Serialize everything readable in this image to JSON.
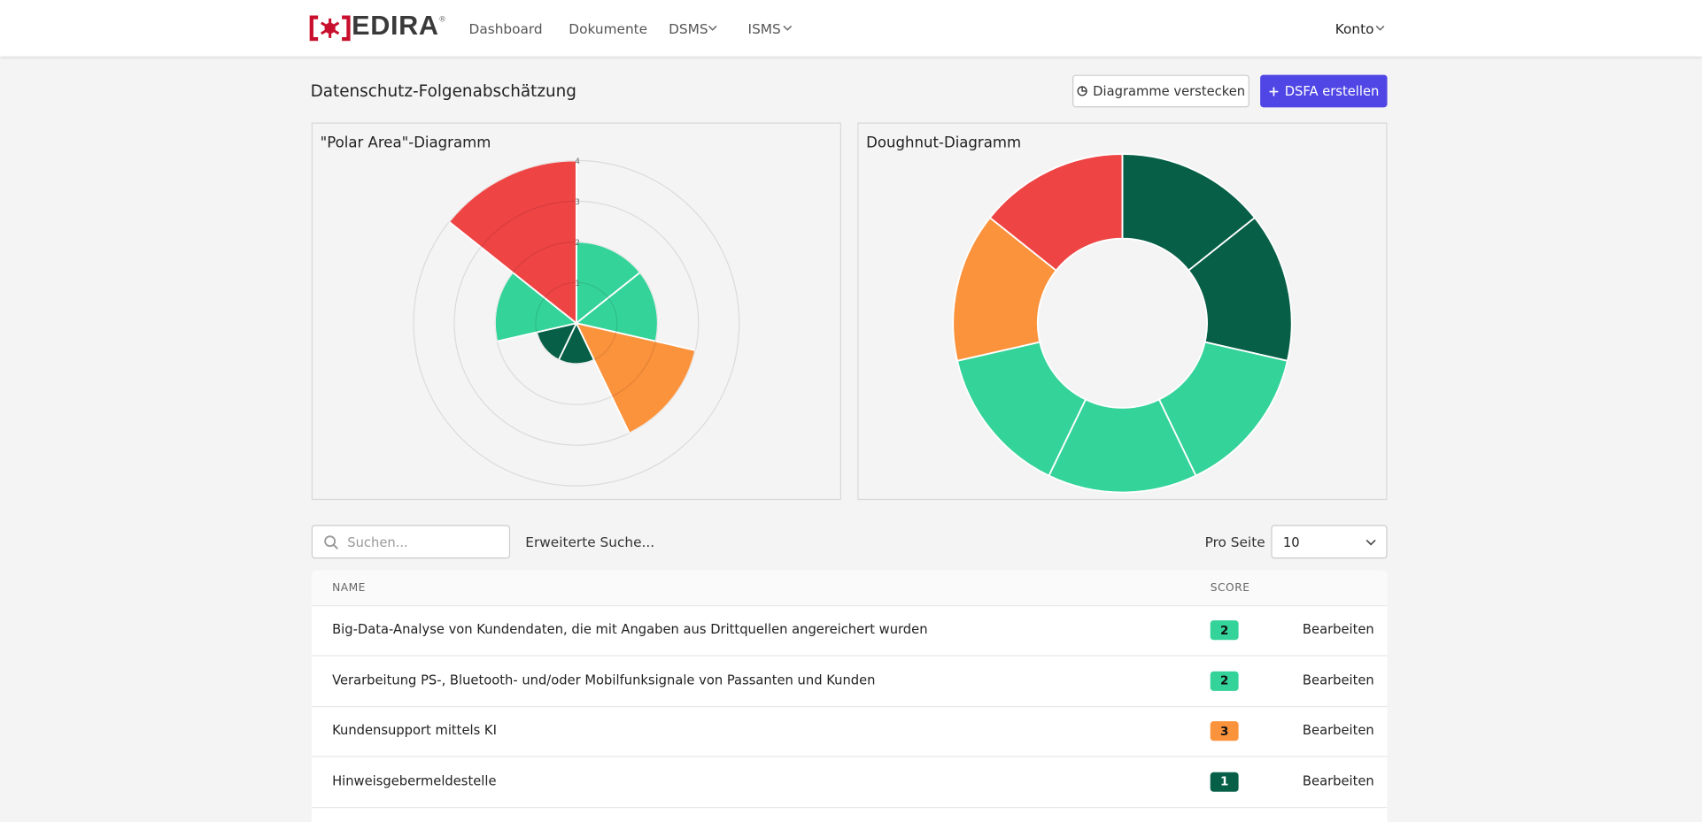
{
  "header": {
    "logo": "EDIRA",
    "logo_mark": "®",
    "nav": [
      "Dashboard",
      "Dokumente",
      "DSMS",
      "ISMS"
    ],
    "account": "Konto"
  },
  "page": {
    "title": "Datenschutz-Folgenabschätzung",
    "buttons": [
      "Diagramme verstecken",
      "DSFA erstellen"
    ]
  },
  "chart_data": [
    {
      "type": "polararea",
      "title": "\"Polar Area\"-Diagramm",
      "values": [
        2,
        2,
        3,
        1,
        1,
        2,
        4
      ],
      "colors": [
        "#34d399",
        "#34d399",
        "#fb923c",
        "#065f46",
        "#065f46",
        "#34d399",
        "#ef4444"
      ],
      "rlim": [
        0,
        4
      ],
      "rticks": [
        1,
        2,
        3,
        4
      ],
      "grid": true
    },
    {
      "type": "doughnut",
      "title": "Doughnut-Diagramm",
      "values": [
        1,
        1,
        1,
        1,
        1,
        1,
        1
      ],
      "colors": [
        "#065f46",
        "#065f46",
        "#34d399",
        "#34d399",
        "#34d399",
        "#fb923c",
        "#ef4444"
      ]
    }
  ],
  "toolbar": {
    "search_placeholder": "Suchen...",
    "advanced_search": "Erweiterte Suche...",
    "per_page_label": "Pro Seite",
    "per_page": 10
  },
  "table": {
    "columns": [
      "NAME",
      "SCORE"
    ],
    "rows": [
      {
        "name": "Big-Data-Analyse von Kundendaten, die mit Angaben aus Drittquellen angereichert wurden",
        "score": 2,
        "action": "Bearbeiten"
      },
      {
        "name": "Verarbeitung PS-, Bluetooth- und/oder Mobilfunksignale von Passanten und Kunden",
        "score": 2,
        "action": "Bearbeiten"
      },
      {
        "name": "Kundensupport mittels KI",
        "score": 3,
        "action": "Bearbeiten"
      },
      {
        "name": "Hinweisgebermeldestelle",
        "score": 1,
        "action": "Bearbeiten"
      }
    ],
    "score_colors": {
      "1": "#065f46",
      "2": "#34d399",
      "3": "#fb923c",
      "4": "#ef4444"
    }
  }
}
